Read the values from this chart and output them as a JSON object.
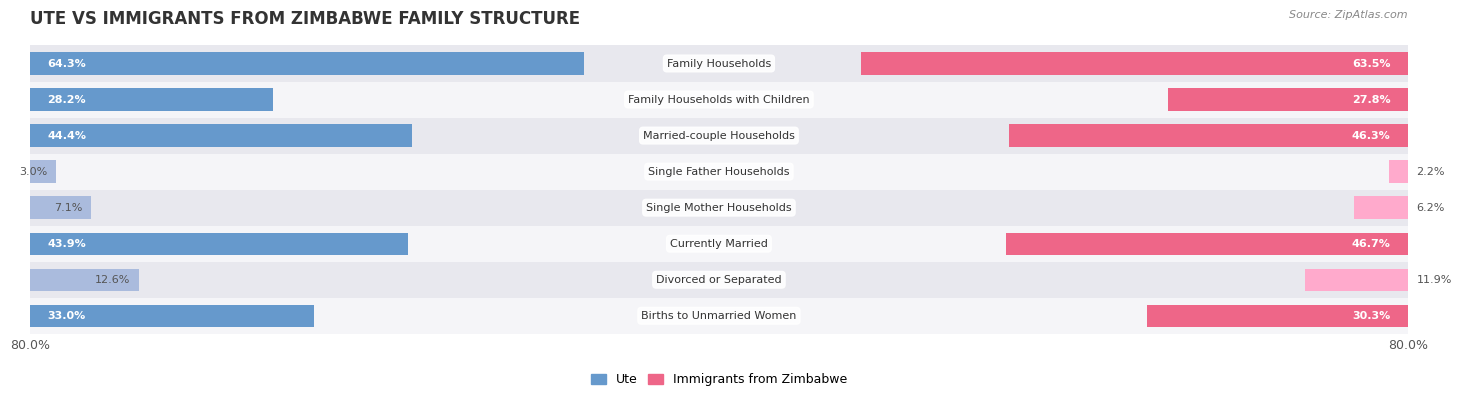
{
  "title": "UTE VS IMMIGRANTS FROM ZIMBABWE FAMILY STRUCTURE",
  "source": "Source: ZipAtlas.com",
  "categories": [
    "Family Households",
    "Family Households with Children",
    "Married-couple Households",
    "Single Father Households",
    "Single Mother Households",
    "Currently Married",
    "Divorced or Separated",
    "Births to Unmarried Women"
  ],
  "ute_values": [
    64.3,
    28.2,
    44.4,
    3.0,
    7.1,
    43.9,
    12.6,
    33.0
  ],
  "zim_values": [
    63.5,
    27.8,
    46.3,
    2.2,
    6.2,
    46.7,
    11.9,
    30.3
  ],
  "max_val": 80.0,
  "ute_color_strong": "#6699CC",
  "ute_color_light": "#AABBDD",
  "zim_color_strong": "#EE6688",
  "zim_color_light": "#FFAACC",
  "bar_height": 0.62,
  "bg_row_dark": "#E8E8EE",
  "bg_row_light": "#F5F5F8",
  "label_font_size": 8.0,
  "title_font_size": 12,
  "legend_font_size": 9,
  "strong_threshold": 20
}
